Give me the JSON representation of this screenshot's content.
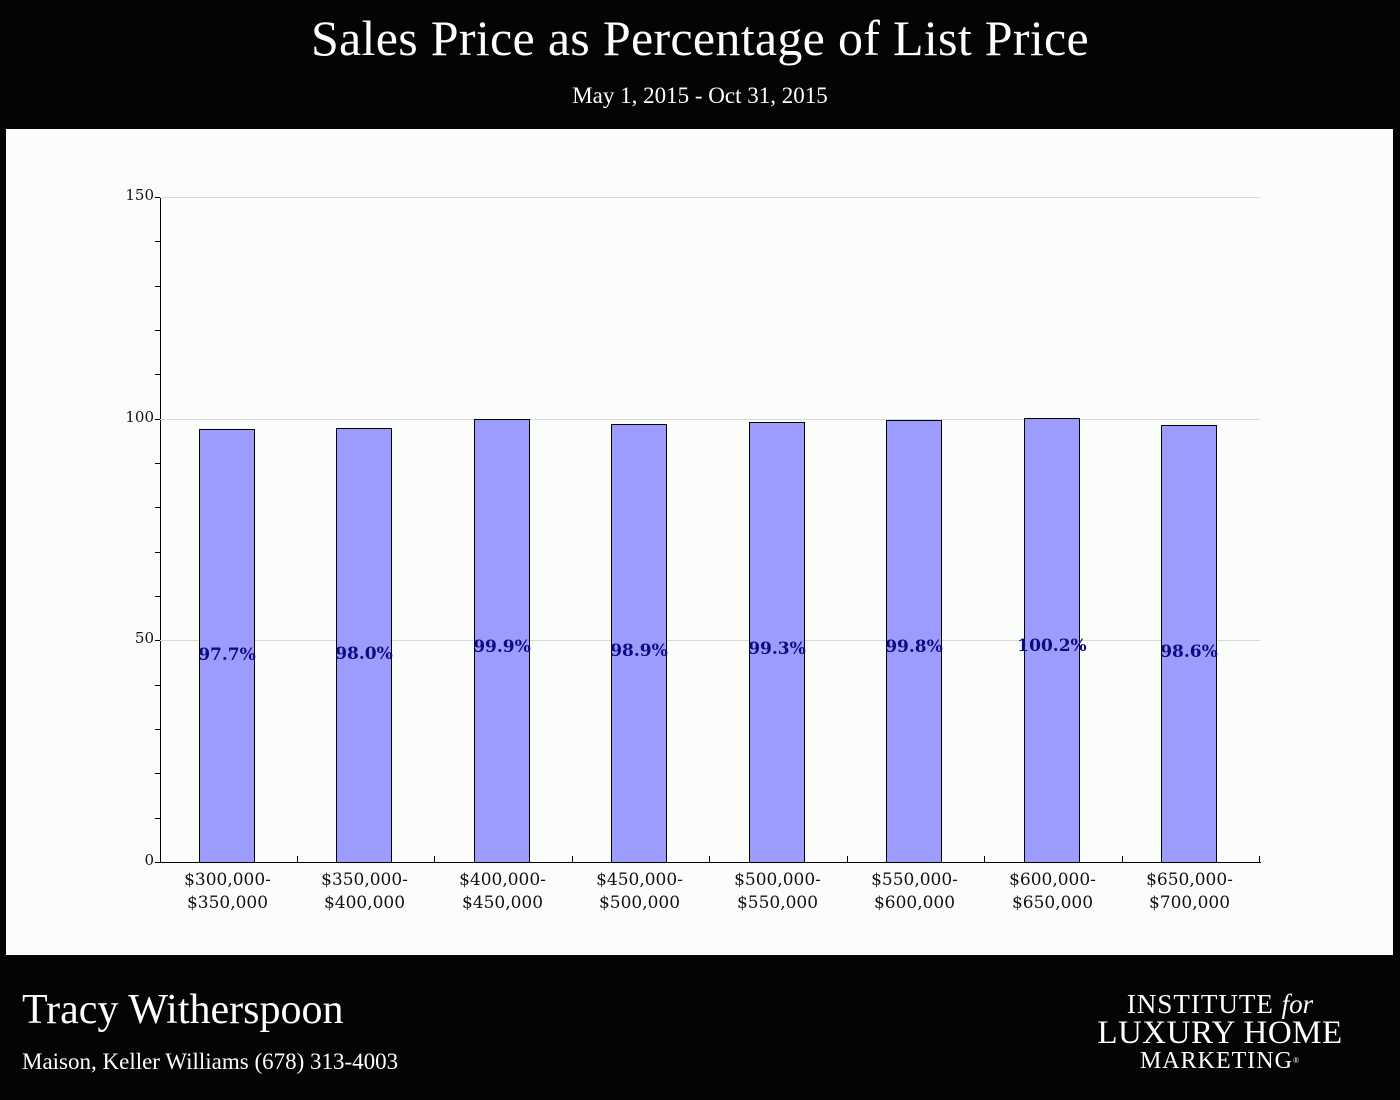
{
  "header": {
    "title": "Sales Price as Percentage of List Price",
    "subtitle": "May 1, 2015 - Oct 31, 2015"
  },
  "footer": {
    "agent_name": "Tracy Witherspoon",
    "agent_details": "Maison, Keller Williams (678) 313-4003",
    "logo": {
      "line1": "INSTITUTE",
      "line1_italic": "for",
      "line2": "LUXURY HOME",
      "line3": "MARKETING",
      "mark": "®"
    }
  },
  "colors": {
    "background": "#050305",
    "panel": "#fbfdfb",
    "bar_fill": "#9c9cff",
    "bar_border": "#000000",
    "data_label": "#0c0c80",
    "gridline": "#d8d8d8"
  },
  "chart_data": {
    "type": "bar",
    "title": "Sales Price as Percentage of List Price",
    "subtitle": "May 1, 2015 - Oct 31, 2015",
    "xlabel": "",
    "ylabel": "",
    "ylim": [
      0,
      150
    ],
    "yticks": [
      "0",
      "50",
      "100",
      "150"
    ],
    "grid": true,
    "legend": null,
    "categories": [
      [
        "$300,000-",
        "$350,000"
      ],
      [
        "$350,000-",
        "$400,000"
      ],
      [
        "$400,000-",
        "$450,000"
      ],
      [
        "$450,000-",
        "$500,000"
      ],
      [
        "$500,000-",
        "$550,000"
      ],
      [
        "$550,000-",
        "$600,000"
      ],
      [
        "$600,000-",
        "$650,000"
      ],
      [
        "$650,000-",
        "$700,000"
      ]
    ],
    "values": [
      97.7,
      98.0,
      99.9,
      98.9,
      99.3,
      99.8,
      100.2,
      98.6
    ],
    "data_labels": [
      "97.7%",
      "98.0%",
      "99.9%",
      "98.9%",
      "99.3%",
      "99.8%",
      "100.2%",
      "98.6%"
    ]
  }
}
